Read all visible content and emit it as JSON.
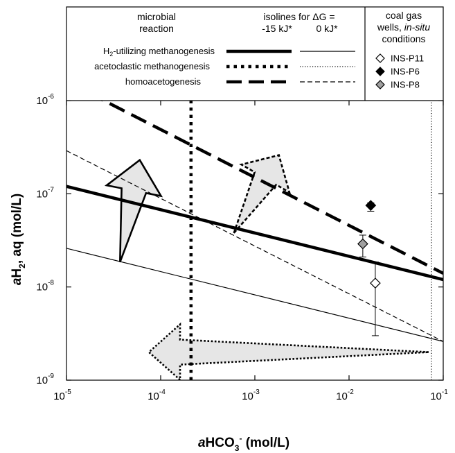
{
  "chart_data": {
    "type": "line",
    "xlabel_prefix": "a",
    "xlabel_main": "HCO",
    "xlabel_sub": "3",
    "xlabel_sup": "-",
    "xlabel_unit": " (mol/L)",
    "ylabel_prefix": "a",
    "ylabel_main": "H",
    "ylabel_sub": "2",
    "ylabel_unit": ", aq (mol/L)",
    "x_scale": "log",
    "y_scale": "log",
    "xlim": [
      1e-05,
      0.1
    ],
    "ylim": [
      1e-09,
      1e-06
    ],
    "x_ticks": [
      {
        "base": "10",
        "exp": "-5",
        "value": 1e-05
      },
      {
        "base": "10",
        "exp": "-4",
        "value": 0.0001
      },
      {
        "base": "10",
        "exp": "-3",
        "value": 0.001
      },
      {
        "base": "10",
        "exp": "-2",
        "value": 0.01
      },
      {
        "base": "10",
        "exp": "-1",
        "value": 0.1
      }
    ],
    "y_ticks": [
      {
        "base": "10",
        "exp": "-9",
        "value": 1e-09
      },
      {
        "base": "10",
        "exp": "-8",
        "value": 1e-08
      },
      {
        "base": "10",
        "exp": "-7",
        "value": 1e-07
      },
      {
        "base": "10",
        "exp": "-6",
        "value": 1e-06
      }
    ],
    "grid": false,
    "legend": {
      "col_reaction_line1": "microbial",
      "col_reaction_line2": "reaction",
      "col_isolines_line1": "isolines for ΔG =",
      "col_isolines_neg": "-15 kJ*",
      "col_isolines_zero": "0 kJ*",
      "col_wells_line1": "coal gas",
      "col_wells_line2a": "wells, ",
      "col_wells_line2b": "in-situ",
      "col_wells_line3": "conditions",
      "reaction_h2_prefix": "H",
      "reaction_h2_sub": "2",
      "reaction_h2_rest": "-utilizing methanogenesis",
      "reaction_aceto": "acetoclastic methanogenesis",
      "reaction_homo": "homoacetogenesis",
      "wells": [
        {
          "name": "INS-P11",
          "fill": "#ffffff"
        },
        {
          "name": "INS-P6",
          "fill": "#000000"
        },
        {
          "name": "INS-P8",
          "fill": "#a0a0a0"
        }
      ]
    },
    "series": [
      {
        "reaction": "H2-utilizing methanogenesis",
        "deltaG_kJ": -15,
        "style": "solid",
        "width": 4.5,
        "x": [
          1e-05,
          0.1
        ],
        "y": [
          1.2e-07,
          1.2e-08
        ]
      },
      {
        "reaction": "H2-utilizing methanogenesis",
        "deltaG_kJ": 0,
        "style": "solid",
        "width": 1.2,
        "x": [
          1e-05,
          0.1
        ],
        "y": [
          2.6e-08,
          2.6e-09
        ]
      },
      {
        "reaction": "acetoclastic methanogenesis",
        "deltaG_kJ": -15,
        "style": "dotted",
        "width": 4.5,
        "x": [
          0.00021,
          0.00021
        ],
        "y": [
          1e-09,
          1e-06
        ]
      },
      {
        "reaction": "acetoclastic methanogenesis",
        "deltaG_kJ": 0,
        "style": "dotted",
        "width": 1.2,
        "x": [
          0.075,
          0.075
        ],
        "y": [
          1e-09,
          1e-06
        ]
      },
      {
        "reaction": "homoacetogenesis",
        "deltaG_kJ": -15,
        "style": "dashed",
        "width": 4.5,
        "x": [
          1e-05,
          0.1
        ],
        "y": [
          1.6e-06,
          1.4e-08
        ]
      },
      {
        "reaction": "homoacetogenesis",
        "deltaG_kJ": 0,
        "style": "dashed",
        "width": 1.2,
        "x": [
          1e-05,
          0.1
        ],
        "y": [
          2.9e-07,
          2.6e-09
        ]
      }
    ],
    "points": [
      {
        "well": "INS-P11",
        "fill": "#ffffff",
        "x": 0.019,
        "y": 1.1e-08,
        "err_low": 3e-09,
        "err_high": 1.85e-08
      },
      {
        "well": "INS-P6",
        "fill": "#000000",
        "x": 0.017,
        "y": 7.5e-08,
        "err_low": 6.5e-08,
        "err_high": 8e-08
      },
      {
        "well": "INS-P8",
        "fill": "#a0a0a0",
        "x": 0.014,
        "y": 2.9e-08,
        "err_low": 2.1e-08,
        "err_high": 3.6e-08
      }
    ],
    "arrows": [
      {
        "reaction": "H2-utilizing methanogenesis",
        "style": "solid",
        "from": [
          3.7e-05,
          1.85e-08
        ],
        "to": [
          6e-05,
          2.3e-07
        ]
      },
      {
        "reaction": "homoacetogenesis",
        "style": "dashed",
        "from": [
          0.0006,
          3.8e-08
        ],
        "to": [
          0.0018,
          2.6e-07
        ]
      },
      {
        "reaction": "acetoclastic methanogenesis",
        "style": "dotted",
        "from": [
          0.07,
          2e-09
        ],
        "to": [
          7.5e-05,
          2e-09
        ]
      }
    ]
  }
}
